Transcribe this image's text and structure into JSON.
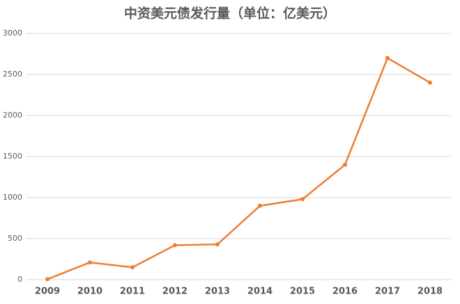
{
  "chart_data": {
    "type": "line",
    "title": "中资美元债发行量（单位：亿美元）",
    "categories": [
      "2009",
      "2010",
      "2011",
      "2012",
      "2013",
      "2014",
      "2015",
      "2016",
      "2017",
      "2018"
    ],
    "values": [
      5,
      210,
      150,
      420,
      430,
      900,
      980,
      1400,
      2700,
      2400
    ],
    "color": "#ED7D31",
    "ylim": [
      0,
      3000
    ],
    "yticks": [
      0,
      500,
      1000,
      1500,
      2000,
      2500,
      3000
    ],
    "grid": true
  }
}
